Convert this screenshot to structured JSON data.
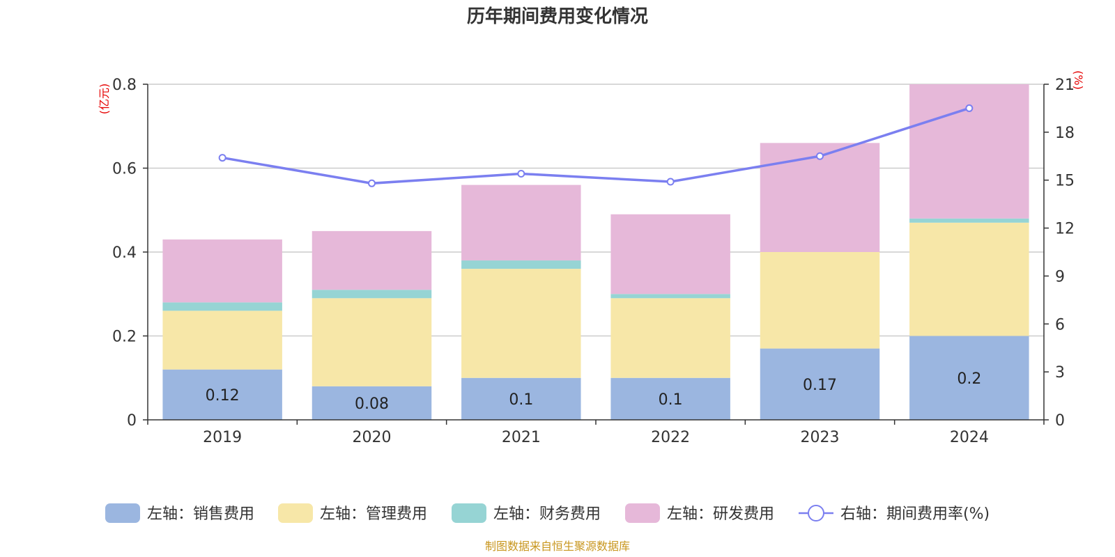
{
  "chart_data": {
    "type": "bar",
    "title": "历年期间费用变化情况",
    "categories": [
      "2019",
      "2020",
      "2021",
      "2022",
      "2023",
      "2024"
    ],
    "left_axis": {
      "unit": "(亿元)",
      "ylim": [
        0,
        0.8
      ],
      "ticks": [
        "0",
        "0.2",
        "0.4",
        "0.6",
        "0.8"
      ]
    },
    "right_axis": {
      "unit": "(%)",
      "ylim": [
        0,
        21
      ],
      "ticks": [
        "0",
        "3",
        "6",
        "9",
        "12",
        "15",
        "18",
        "21"
      ]
    },
    "series": [
      {
        "name": "左轴：销售费用",
        "type": "bar",
        "stack": true,
        "axis": "left",
        "color": "#9bb6e0",
        "values": [
          0.12,
          0.08,
          0.1,
          0.1,
          0.17,
          0.2
        ],
        "labels": [
          "0.12",
          "0.08",
          "0.1",
          "0.1",
          "0.17",
          "0.2"
        ]
      },
      {
        "name": "左轴：管理费用",
        "type": "bar",
        "stack": true,
        "axis": "left",
        "color": "#f7e7a8",
        "values": [
          0.14,
          0.21,
          0.26,
          0.19,
          0.23,
          0.27
        ]
      },
      {
        "name": "左轴：财务费用",
        "type": "bar",
        "stack": true,
        "axis": "left",
        "color": "#96d4d4",
        "values": [
          0.02,
          0.02,
          0.02,
          0.01,
          0.0,
          0.01
        ]
      },
      {
        "name": "左轴：研发费用",
        "type": "bar",
        "stack": true,
        "axis": "left",
        "color": "#e6b8d9",
        "values": [
          0.15,
          0.14,
          0.18,
          0.19,
          0.26,
          0.32
        ]
      },
      {
        "name": "右轴：期间费用率(%)",
        "type": "line",
        "axis": "right",
        "color": "#7b7ff0",
        "values": [
          16.4,
          14.8,
          15.4,
          14.9,
          16.5,
          19.5
        ]
      }
    ],
    "grid": true,
    "legend_position": "bottom",
    "source": "制图数据来自恒生聚源数据库"
  }
}
